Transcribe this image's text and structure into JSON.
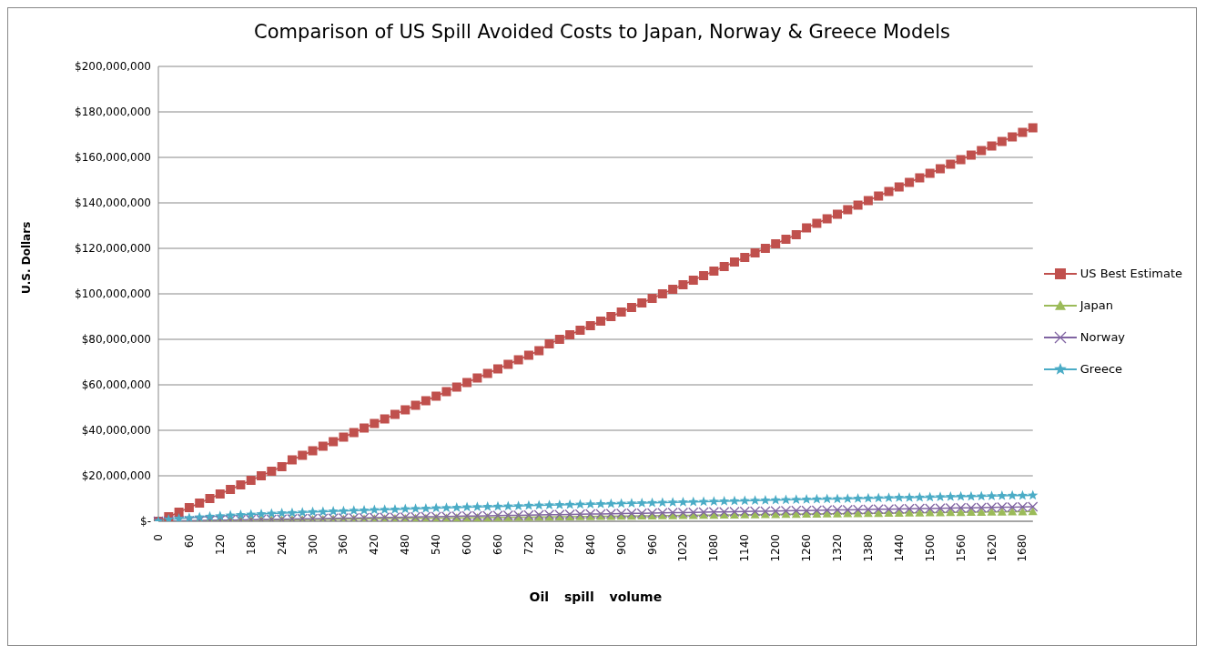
{
  "chart_data": {
    "type": "line",
    "title": "Comparison of US Spill Avoided Costs to Japan, Norway & Greece Models",
    "xlabel": "Oil spill volume",
    "ylabel": "U.S. Dollars",
    "categories": [
      "0",
      null,
      null,
      "60",
      null,
      null,
      "120",
      null,
      null,
      "180",
      null,
      null,
      "240",
      null,
      null,
      "300",
      null,
      null,
      "360",
      null,
      null,
      "420",
      null,
      null,
      "480",
      null,
      null,
      "540",
      null,
      null,
      "600",
      null,
      null,
      "660",
      null,
      null,
      "720",
      null,
      null,
      "780",
      null,
      null,
      "840",
      null,
      null,
      "900",
      null,
      null,
      "960",
      null,
      null,
      "1020",
      null,
      null,
      "1080",
      null,
      null,
      "1140",
      null,
      null,
      "1200",
      null,
      null,
      "1260",
      null,
      null,
      "1320",
      null,
      null,
      "1380",
      null,
      null,
      "1440",
      null,
      null,
      "1500",
      null,
      null,
      "1560",
      null,
      null,
      "1620",
      null,
      null,
      "1680",
      null
    ],
    "series": [
      {
        "name": "US Best Estimate",
        "color": "#c0504d",
        "marker": "square",
        "values": [
          0,
          2000000,
          4000000,
          6000000,
          8000000,
          10000000,
          12000000,
          14000000,
          16000000,
          18000000,
          20000000,
          22000000,
          24000000,
          27000000,
          29000000,
          31000000,
          33000000,
          35000000,
          37000000,
          39000000,
          41000000,
          43000000,
          45000000,
          47000000,
          49000000,
          51000000,
          53000000,
          55000000,
          57000000,
          59000000,
          61000000,
          63000000,
          65000000,
          67000000,
          69000000,
          71000000,
          73000000,
          75000000,
          78000000,
          80000000,
          82000000,
          84000000,
          86000000,
          88000000,
          90000000,
          92000000,
          94000000,
          96000000,
          98000000,
          100000000,
          102000000,
          104000000,
          106000000,
          108000000,
          110000000,
          112000000,
          114000000,
          116000000,
          118000000,
          120000000,
          122000000,
          124000000,
          126000000,
          129000000,
          131000000,
          133000000,
          135000000,
          137000000,
          139000000,
          141000000,
          143000000,
          145000000,
          147000000,
          149000000,
          151000000,
          153000000,
          155000000,
          157000000,
          159000000,
          161000000,
          163000000,
          165000000,
          167000000,
          169000000,
          171000000,
          173000000
        ]
      },
      {
        "name": "Japan",
        "color": "#9bbb59",
        "marker": "triangle",
        "values": [
          null,
          null,
          100000,
          200000,
          200000,
          300000,
          300000,
          400000,
          400000,
          500000,
          500000,
          600000,
          600000,
          700000,
          700000,
          800000,
          800000,
          900000,
          900000,
          1000000,
          1000000,
          1100000,
          1100000,
          1200000,
          1200000,
          1300000,
          1300000,
          1400000,
          1400000,
          1500000,
          1500000,
          1600000,
          1600000,
          1700000,
          1700000,
          1800000,
          1800000,
          1900000,
          1900000,
          2000000,
          2000000,
          2100000,
          2100000,
          2200000,
          2200000,
          2300000,
          2300000,
          2400000,
          2400000,
          2500000,
          2500000,
          2600000,
          2600000,
          2700000,
          2700000,
          2800000,
          2800000,
          2900000,
          2900000,
          3000000,
          3000000,
          3100000,
          3100000,
          3200000,
          3200000,
          3300000,
          3300000,
          3400000,
          3400000,
          3500000,
          3500000,
          3600000,
          3600000,
          3700000,
          3700000,
          3800000,
          3800000,
          3900000,
          3900000,
          4000000,
          4000000,
          4100000,
          4100000,
          4200000,
          4200000,
          4300000
        ]
      },
      {
        "name": "Norway",
        "color": "#8064a2",
        "marker": "cross",
        "values": [
          0,
          100000,
          200000,
          200000,
          300000,
          400000,
          500000,
          500000,
          600000,
          700000,
          800000,
          800000,
          900000,
          1000000,
          1100000,
          1100000,
          1200000,
          1300000,
          1400000,
          1400000,
          1500000,
          1600000,
          1700000,
          1700000,
          1800000,
          1900000,
          2000000,
          2000000,
          2100000,
          2200000,
          2300000,
          2300000,
          2400000,
          2500000,
          2600000,
          2600000,
          2700000,
          2800000,
          2900000,
          2900000,
          3000000,
          3100000,
          3200000,
          3200000,
          3300000,
          3400000,
          3500000,
          3500000,
          3600000,
          3700000,
          3800000,
          3800000,
          3900000,
          4000000,
          4100000,
          4100000,
          4200000,
          4300000,
          4400000,
          4400000,
          4500000,
          4600000,
          4700000,
          4700000,
          4800000,
          4900000,
          5000000,
          5000000,
          5100000,
          5200000,
          5300000,
          5300000,
          5400000,
          5500000,
          5600000,
          5600000,
          5700000,
          5800000,
          5900000,
          5900000,
          6000000,
          6100000,
          6200000,
          6200000,
          6300000,
          6400000
        ]
      },
      {
        "name": "Greece",
        "color": "#4bacc6",
        "marker": "star",
        "values": [
          0,
          800000,
          1200000,
          1500000,
          1800000,
          2100000,
          2300000,
          2600000,
          2800000,
          3000000,
          3200000,
          3400000,
          3600000,
          3700000,
          3900000,
          4100000,
          4200000,
          4400000,
          4500000,
          4700000,
          4800000,
          5000000,
          5100000,
          5200000,
          5400000,
          5500000,
          5600000,
          5800000,
          5900000,
          6000000,
          6200000,
          6300000,
          6400000,
          6500000,
          6600000,
          6700000,
          6900000,
          7000000,
          7100000,
          7200000,
          7300000,
          7400000,
          7500000,
          7600000,
          7700000,
          7800000,
          7900000,
          8000000,
          8100000,
          8200000,
          8300000,
          8400000,
          8500000,
          8600000,
          8700000,
          8800000,
          8900000,
          9000000,
          9100000,
          9200000,
          9300000,
          9400000,
          9500000,
          9600000,
          9700000,
          9800000,
          9800000,
          9900000,
          10000000,
          10100000,
          10200000,
          10300000,
          10400000,
          10400000,
          10500000,
          10600000,
          10700000,
          10800000,
          10900000,
          10900000,
          11000000,
          11100000,
          11200000,
          11300000,
          11300000,
          11400000
        ]
      }
    ],
    "ylim": [
      0,
      200000000
    ],
    "yticks": [
      {
        "value": 0,
        "label": "$-"
      },
      {
        "value": 20000000,
        "label": "$20,000,000"
      },
      {
        "value": 40000000,
        "label": "$40,000,000"
      },
      {
        "value": 60000000,
        "label": "$60,000,000"
      },
      {
        "value": 80000000,
        "label": "$80,000,000"
      },
      {
        "value": 100000000,
        "label": "$100,000,000"
      },
      {
        "value": 120000000,
        "label": "$120,000,000"
      },
      {
        "value": 140000000,
        "label": "$140,000,000"
      },
      {
        "value": 160000000,
        "label": "$160,000,000"
      },
      {
        "value": 180000000,
        "label": "$180,000,000"
      },
      {
        "value": 200000000,
        "label": "$200,000,000"
      }
    ],
    "grid": "y",
    "legend": "right"
  }
}
